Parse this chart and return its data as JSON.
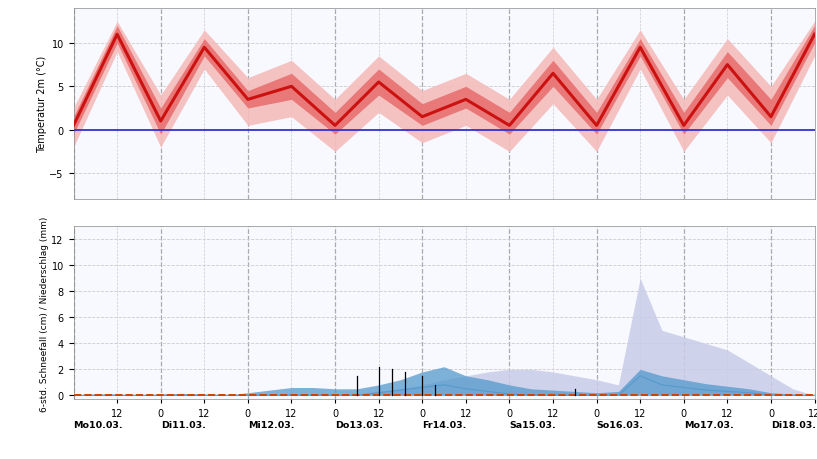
{
  "bg_color": "#ffffff",
  "axis_bg": "#f8f8ff",
  "temp_ylabel": "Temperatur 2m (°C)",
  "precip_ylabel": "6-std. Schneefall (cm) / Niederschlag (mm)",
  "temp_ylim": [
    -8,
    14
  ],
  "precip_ylim": [
    -0.3,
    13
  ],
  "temp_yticks": [
    -5,
    0,
    5,
    10
  ],
  "precip_yticks": [
    0,
    2,
    4,
    6,
    8,
    10,
    12
  ],
  "x_day_labels": [
    "Mo10.03.",
    "Di11.03.",
    "Mi12.03.",
    "Do13.03.",
    "Fr14.03.",
    "Sa15.03.",
    "So16.03.",
    "Mo17.03.",
    "Di18.03."
  ],
  "x_day_positions": [
    0,
    2,
    4,
    6,
    8,
    10,
    12,
    14,
    16
  ],
  "x_positions": [
    0,
    1,
    2,
    3,
    4,
    5,
    6,
    7,
    8,
    9,
    10,
    11,
    12,
    13,
    14,
    15,
    16,
    17
  ],
  "temp_mean": [
    0.5,
    11.0,
    1.0,
    9.5,
    3.5,
    5.0,
    0.5,
    5.5,
    1.5,
    3.5,
    0.5,
    6.5,
    0.5,
    9.5,
    0.5,
    7.5,
    1.5,
    11.0
  ],
  "temp_p75": [
    1.5,
    12.0,
    2.5,
    10.5,
    4.5,
    6.5,
    2.0,
    7.0,
    3.0,
    5.0,
    2.0,
    8.0,
    2.0,
    10.5,
    2.0,
    9.0,
    3.5,
    12.0
  ],
  "temp_p25": [
    -0.5,
    10.0,
    -0.5,
    8.5,
    2.5,
    3.5,
    -0.5,
    4.0,
    0.5,
    2.5,
    -0.5,
    5.0,
    -0.5,
    8.5,
    -0.5,
    6.0,
    0.5,
    10.0
  ],
  "temp_p90": [
    2.5,
    12.5,
    4.0,
    11.5,
    6.0,
    8.0,
    3.5,
    8.5,
    4.5,
    6.5,
    3.5,
    9.5,
    3.5,
    11.5,
    3.5,
    10.5,
    5.0,
    12.5
  ],
  "temp_p10": [
    -2.0,
    9.0,
    -2.0,
    7.0,
    0.5,
    1.5,
    -2.5,
    2.0,
    -1.5,
    0.5,
    -2.5,
    3.0,
    -2.5,
    7.0,
    -2.5,
    4.0,
    -1.5,
    8.5
  ],
  "x_pos_fine": [
    0,
    0.5,
    1,
    1.5,
    2,
    2.5,
    3,
    3.5,
    4,
    4.5,
    5,
    5.5,
    6,
    6.5,
    7,
    7.5,
    8,
    8.5,
    9,
    9.5,
    10,
    10.5,
    11,
    11.5,
    12,
    12.5,
    13,
    13.5,
    14,
    14.5,
    15,
    15.5,
    16,
    16.5,
    17
  ],
  "snow_p75": [
    0,
    0,
    0,
    0,
    0,
    0,
    0,
    0,
    0,
    0,
    0,
    0,
    0,
    0.1,
    0.3,
    0.5,
    0.8,
    1.2,
    1.5,
    1.8,
    2.0,
    2.0,
    1.8,
    1.5,
    1.2,
    0.8,
    9.0,
    5.0,
    4.5,
    4.0,
    3.5,
    2.5,
    1.5,
    0.5,
    0
  ],
  "precip_p75": [
    0,
    0.1,
    0.1,
    0,
    0.1,
    0.15,
    0.1,
    0,
    0.2,
    0.4,
    0.6,
    0.6,
    0.5,
    0.5,
    0.8,
    1.2,
    1.8,
    2.2,
    1.5,
    1.2,
    0.8,
    0.5,
    0.4,
    0.3,
    0.2,
    0.3,
    2.0,
    1.5,
    1.2,
    0.9,
    0.7,
    0.5,
    0.2,
    0.1,
    0
  ],
  "precip_mean": [
    0,
    0,
    0,
    0,
    0,
    0,
    0,
    0,
    0,
    0,
    0,
    0,
    0,
    0,
    0.2,
    0.4,
    0.6,
    0.8,
    0.5,
    0.3,
    0.1,
    0,
    0,
    0,
    0,
    0,
    1.5,
    0.8,
    0.6,
    0.4,
    0.3,
    0.2,
    0,
    0,
    0
  ],
  "stem_positions": [
    6.5,
    7.0,
    7.3,
    7.6,
    8.0,
    8.3,
    11.5
  ],
  "stem_heights": [
    1.5,
    2.2,
    2.0,
    1.8,
    1.5,
    0.8,
    0.5
  ],
  "colors": {
    "temp_line": "#cc1111",
    "temp_band1": "#e87070",
    "temp_band2": "#f5bcbc",
    "zero_line": "#3333cc",
    "snow_band": "#c8cce8",
    "precip_band": "#5599cc",
    "dashed_zero": "#cc4400",
    "grid": "#cccccc",
    "vgrid_major": "#aaaaaa",
    "vgrid_minor": "#cccccc"
  }
}
